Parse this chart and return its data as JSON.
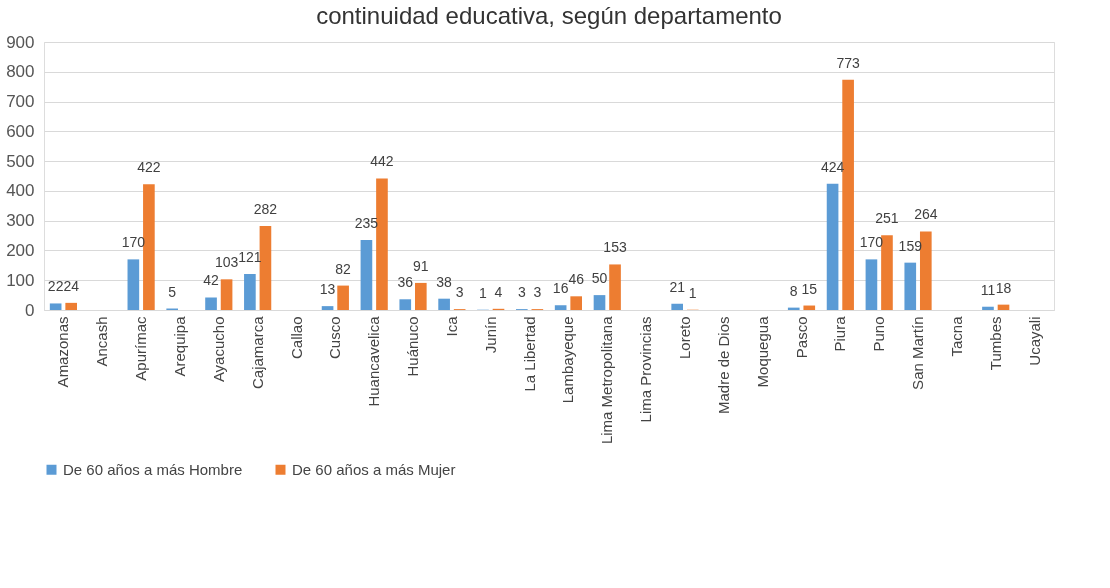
{
  "chart_data": {
    "type": "bar",
    "title": "continuidad educativa, según departamento",
    "categories": [
      "Amazonas",
      "Ancash",
      "Apurímac",
      "Arequipa",
      "Ayacucho",
      "Cajamarca",
      "Callao",
      "Cusco",
      "Huancavelica",
      "Huánuco",
      "Ica",
      "Junín",
      "La Libertad",
      "Lambayeque",
      "Lima Metropolitana",
      "Lima Provincias",
      "Loreto",
      "Madre de Dios",
      "Moquegua",
      "Pasco",
      "Piura",
      "Puno",
      "San Martín",
      "Tacna",
      "Tumbes",
      "Ucayali"
    ],
    "series": [
      {
        "name": "De 60 años a más Hombre",
        "color": "#5b9bd5",
        "values": [
          22,
          null,
          170,
          5,
          42,
          121,
          null,
          13,
          235,
          36,
          38,
          1,
          3,
          16,
          50,
          null,
          21,
          null,
          null,
          8,
          424,
          170,
          159,
          null,
          11,
          null
        ]
      },
      {
        "name": "De 60 años a más Mujer",
        "color": "#ed7d31",
        "values": [
          24,
          null,
          422,
          null,
          103,
          282,
          null,
          82,
          442,
          91,
          3,
          4,
          3,
          46,
          153,
          null,
          1,
          null,
          null,
          15,
          773,
          251,
          264,
          null,
          18,
          null
        ]
      }
    ],
    "ylim": [
      0,
      900
    ],
    "yticks": [
      0,
      100,
      200,
      300,
      400,
      500,
      600,
      700,
      800,
      900
    ],
    "grid": "y",
    "legend": "bottom",
    "data_labels": true
  }
}
